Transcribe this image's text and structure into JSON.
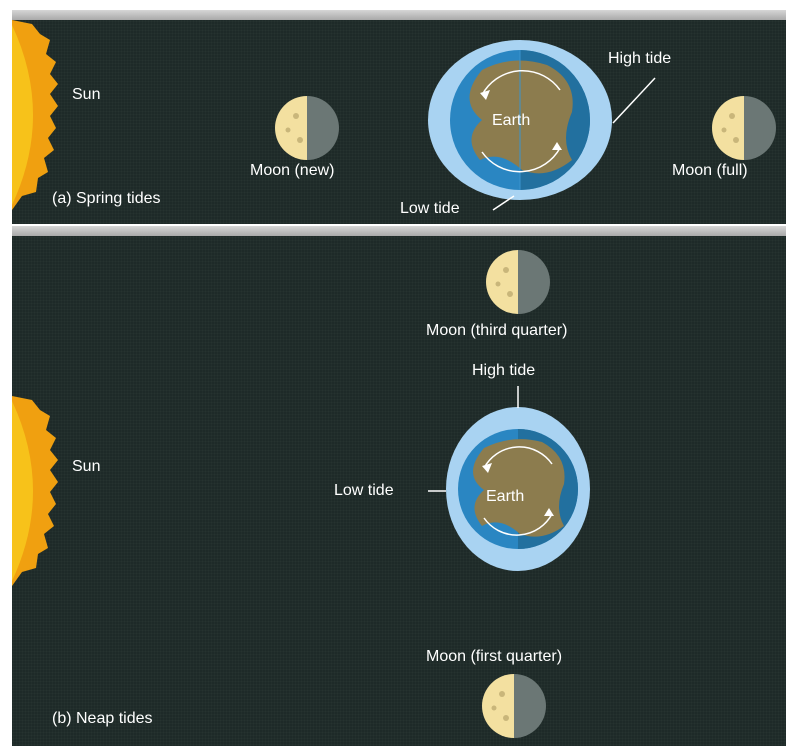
{
  "spring": {
    "caption": "(a) Spring tides",
    "sun_label": "Sun",
    "earth_label": "Earth",
    "moon_new_label": "Moon (new)",
    "moon_full_label": "Moon (full)",
    "high_tide_label": "High tide",
    "low_tide_label": "Low tide"
  },
  "neap": {
    "caption": "(b) Neap tides",
    "sun_label": "Sun",
    "earth_label": "Earth",
    "moon_third_label": "Moon (third quarter)",
    "moon_first_label": "Moon (first quarter)",
    "high_tide_label": "High tide",
    "low_tide_label": "Low tide"
  },
  "colors": {
    "background": "#1e2a28",
    "sun": "#f7c21a",
    "tidal_bulge": "#a9d3f2",
    "ocean": "#2a86c2",
    "land": "#8c7c4e",
    "moon_lit": "#f3e0a0",
    "moon_dark": "#6b7775"
  }
}
